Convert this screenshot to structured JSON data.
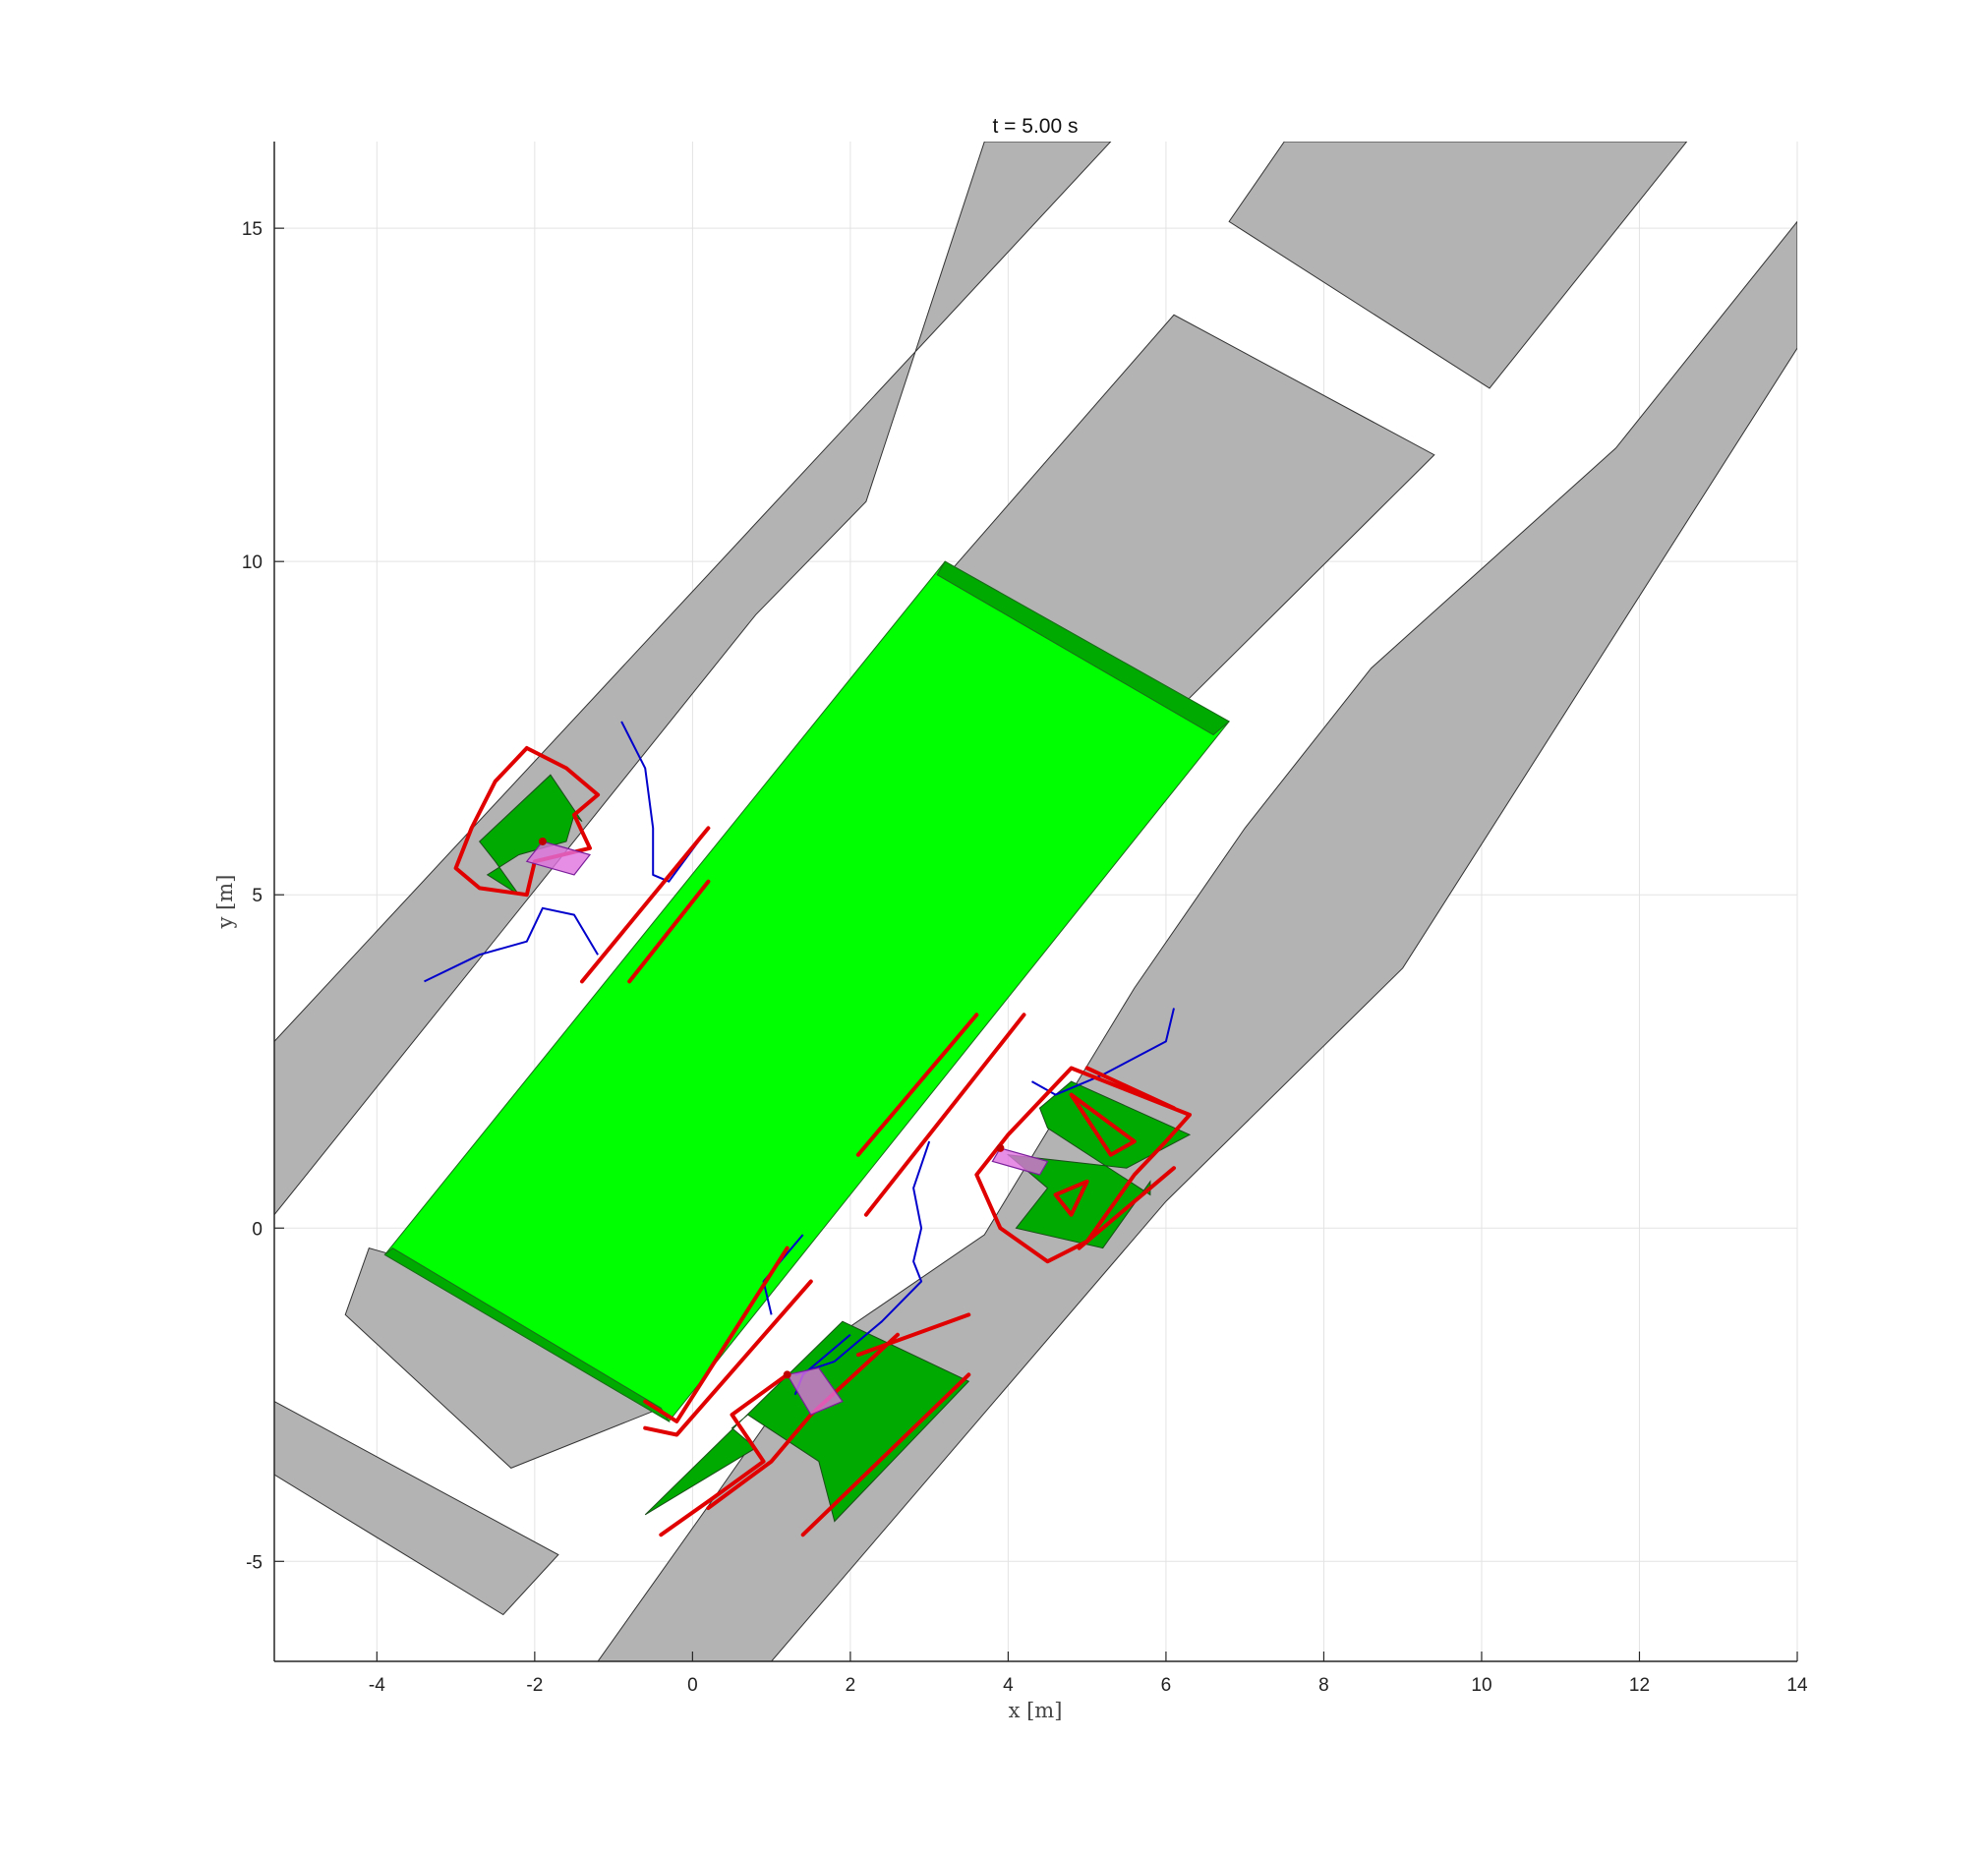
{
  "chart_data": {
    "type": "map",
    "title": "t = 5.00 s",
    "xlabel": "x [m]",
    "ylabel": "y [m]",
    "xlim": [
      -5.3,
      14
    ],
    "ylim": [
      -6.5,
      16.3
    ],
    "xticks": [
      -4,
      -2,
      0,
      2,
      4,
      6,
      8,
      10,
      12,
      14
    ],
    "yticks": [
      -5,
      0,
      5,
      10,
      15
    ],
    "grid": true,
    "colors": {
      "building": "#b3b3b3",
      "field": "#00ff00",
      "field_edge": "#00aa00",
      "zone": "#00aa00",
      "contour": "#e00000",
      "trajectory": "#0000cc",
      "vehicle": "#e070e0",
      "grid": "#e3e3e3"
    },
    "buildings": [
      [
        [
          -5.3,
          2.8
        ],
        [
          -5.3,
          0.2
        ],
        [
          0.8,
          9.2
        ],
        [
          2.2,
          10.9
        ],
        [
          3.7,
          16.3
        ],
        [
          5.3,
          16.3
        ]
      ],
      [
        [
          6.8,
          15.1
        ],
        [
          7.5,
          16.3
        ],
        [
          12.6,
          16.3
        ],
        [
          10.1,
          12.6
        ]
      ],
      [
        [
          3.3,
          9.9
        ],
        [
          6.0,
          7.6
        ],
        [
          9.4,
          11.6
        ],
        [
          6.1,
          13.7
        ]
      ],
      [
        [
          -4.4,
          -1.3
        ],
        [
          -4.1,
          -0.3
        ],
        [
          -3.5,
          -0.5
        ],
        [
          -0.4,
          -2.7
        ],
        [
          -2.3,
          -3.6
        ]
      ],
      [
        [
          -5.3,
          -2.6
        ],
        [
          -5.3,
          -3.7
        ],
        [
          -2.4,
          -5.8
        ],
        [
          -1.7,
          -4.9
        ]
      ],
      [
        [
          -1.2,
          -6.5
        ],
        [
          1.0,
          -6.5
        ],
        [
          6.0,
          0.4
        ],
        [
          9.0,
          3.9
        ],
        [
          14.0,
          13.2
        ],
        [
          14.0,
          15.1
        ],
        [
          11.7,
          11.7
        ],
        [
          8.6,
          8.4
        ],
        [
          7.0,
          6.0
        ],
        [
          5.6,
          3.6
        ],
        [
          3.7,
          -0.1
        ],
        [
          1.6,
          -1.8
        ],
        [
          0.3,
          -4.0
        ]
      ]
    ],
    "field": [
      [
        -3.9,
        -0.4
      ],
      [
        3.2,
        10.0
      ],
      [
        6.8,
        7.6
      ],
      [
        -0.3,
        -2.9
      ]
    ],
    "field_edges": [
      [
        [
          3.2,
          10.0
        ],
        [
          6.8,
          7.6
        ],
        [
          6.6,
          7.4
        ],
        [
          3.1,
          9.8
        ]
      ],
      [
        [
          -3.9,
          -0.4
        ],
        [
          -0.3,
          -2.9
        ],
        [
          -0.4,
          -2.7
        ],
        [
          -3.8,
          -0.3
        ]
      ]
    ],
    "zones": [
      [
        [
          -2.7,
          5.8
        ],
        [
          -1.8,
          6.8
        ],
        [
          -1.4,
          6.1
        ],
        [
          -1.5,
          6.2
        ],
        [
          -1.6,
          5.8
        ],
        [
          -2.2,
          5.6
        ],
        [
          -2.6,
          5.3
        ],
        [
          -2.2,
          5.0
        ],
        [
          -2.5,
          5.5
        ]
      ],
      [
        [
          4.8,
          2.2
        ],
        [
          6.3,
          1.4
        ],
        [
          5.5,
          0.9
        ],
        [
          4.0,
          1.1
        ],
        [
          4.5,
          0.6
        ],
        [
          4.1,
          0.0
        ],
        [
          5.2,
          -0.3
        ],
        [
          5.8,
          0.7
        ],
        [
          5.8,
          0.5
        ],
        [
          4.5,
          1.5
        ],
        [
          4.4,
          1.8
        ]
      ],
      [
        [
          -0.6,
          -4.3
        ],
        [
          1.9,
          -1.4
        ],
        [
          3.5,
          -2.3
        ],
        [
          1.8,
          -4.4
        ],
        [
          1.6,
          -3.5
        ],
        [
          0.7,
          -2.8
        ],
        [
          0.5,
          -3.0
        ],
        [
          0.8,
          -3.3
        ]
      ]
    ],
    "contours": [
      [
        [
          -2.1,
          7.2
        ],
        [
          -1.6,
          6.9
        ],
        [
          -1.2,
          6.5
        ],
        [
          -1.5,
          6.2
        ],
        [
          -1.3,
          5.7
        ],
        [
          -2.0,
          5.5
        ],
        [
          -2.1,
          5.0
        ],
        [
          -2.7,
          5.1
        ],
        [
          -3.0,
          5.4
        ],
        [
          -2.8,
          6.0
        ],
        [
          -2.5,
          6.7
        ],
        [
          -2.1,
          7.2
        ]
      ],
      [
        [
          4.0,
          1.4
        ],
        [
          4.8,
          2.4
        ],
        [
          6.3,
          1.7
        ],
        [
          6.0,
          1.3
        ],
        [
          5.6,
          0.8
        ],
        [
          5.0,
          -0.2
        ],
        [
          4.5,
          -0.5
        ],
        [
          3.9,
          0.0
        ],
        [
          3.6,
          0.8
        ],
        [
          4.0,
          1.4
        ]
      ],
      [
        [
          4.8,
          2.0
        ],
        [
          5.6,
          1.3
        ],
        [
          5.3,
          1.1
        ],
        [
          4.8,
          2.0
        ]
      ],
      [
        [
          4.6,
          0.5
        ],
        [
          5.0,
          0.7
        ],
        [
          4.8,
          0.2
        ],
        [
          4.6,
          0.5
        ]
      ],
      [
        [
          1.2,
          -2.2
        ],
        [
          0.5,
          -2.8
        ],
        [
          0.9,
          -3.5
        ],
        [
          0.2,
          -4.1
        ],
        [
          -0.4,
          -4.6
        ]
      ],
      [
        [
          2.6,
          -1.6
        ],
        [
          1.5,
          -2.8
        ],
        [
          1.0,
          -3.5
        ],
        [
          0.2,
          -4.2
        ]
      ],
      [
        [
          3.5,
          -1.3
        ],
        [
          2.1,
          -1.9
        ]
      ],
      [
        [
          1.4,
          -4.6
        ],
        [
          3.5,
          -2.2
        ]
      ],
      [
        [
          -1.4,
          3.7
        ],
        [
          0.2,
          6.0
        ]
      ],
      [
        [
          -0.8,
          3.7
        ],
        [
          0.2,
          5.2
        ]
      ],
      [
        [
          -0.6,
          -2.6
        ],
        [
          -0.2,
          -2.9
        ],
        [
          1.2,
          -0.3
        ]
      ],
      [
        [
          -0.6,
          -3.0
        ],
        [
          -0.2,
          -3.1
        ],
        [
          1.5,
          -0.8
        ]
      ],
      [
        [
          2.1,
          1.1
        ],
        [
          3.6,
          3.2
        ]
      ],
      [
        [
          2.2,
          0.2
        ],
        [
          4.2,
          3.2
        ]
      ],
      [
        [
          5.0,
          2.4
        ],
        [
          6.1,
          1.8
        ]
      ],
      [
        [
          4.9,
          -0.3
        ],
        [
          6.1,
          0.9
        ]
      ]
    ],
    "trajectories": [
      [
        [
          -0.9,
          7.6
        ],
        [
          -0.6,
          6.9
        ],
        [
          -0.5,
          6.0
        ],
        [
          -0.5,
          5.3
        ],
        [
          -0.3,
          5.2
        ],
        [
          0.2,
          6.0
        ]
      ],
      [
        [
          -1.2,
          4.1
        ],
        [
          -1.5,
          4.7
        ],
        [
          -1.9,
          4.8
        ],
        [
          -2.1,
          4.3
        ],
        [
          -2.7,
          4.1
        ],
        [
          -3.4,
          3.7
        ]
      ],
      [
        [
          4.3,
          2.2
        ],
        [
          4.6,
          2.0
        ],
        [
          5.2,
          2.3
        ],
        [
          6.0,
          2.8
        ],
        [
          6.1,
          3.3
        ]
      ],
      [
        [
          3.0,
          1.3
        ],
        [
          2.8,
          0.6
        ],
        [
          2.9,
          0.0
        ],
        [
          2.8,
          -0.5
        ],
        [
          2.9,
          -0.8
        ],
        [
          2.4,
          -1.4
        ],
        [
          1.8,
          -2.0
        ],
        [
          1.3,
          -2.2
        ]
      ],
      [
        [
          1.3,
          -2.5
        ],
        [
          1.4,
          -2.2
        ],
        [
          1.7,
          -1.9
        ],
        [
          2.0,
          -1.6
        ]
      ],
      [
        [
          1.0,
          -1.3
        ],
        [
          0.9,
          -0.8
        ],
        [
          1.4,
          -0.1
        ]
      ]
    ],
    "vehicles": [
      [
        [
          -1.9,
          5.8
        ],
        [
          -1.3,
          5.6
        ],
        [
          -1.5,
          5.3
        ],
        [
          -2.1,
          5.5
        ]
      ],
      [
        [
          3.9,
          1.2
        ],
        [
          4.5,
          1.0
        ],
        [
          4.4,
          0.8
        ],
        [
          3.8,
          1.0
        ]
      ],
      [
        [
          1.2,
          -2.2
        ],
        [
          1.6,
          -2.1
        ],
        [
          1.9,
          -2.6
        ],
        [
          1.5,
          -2.8
        ]
      ]
    ]
  }
}
